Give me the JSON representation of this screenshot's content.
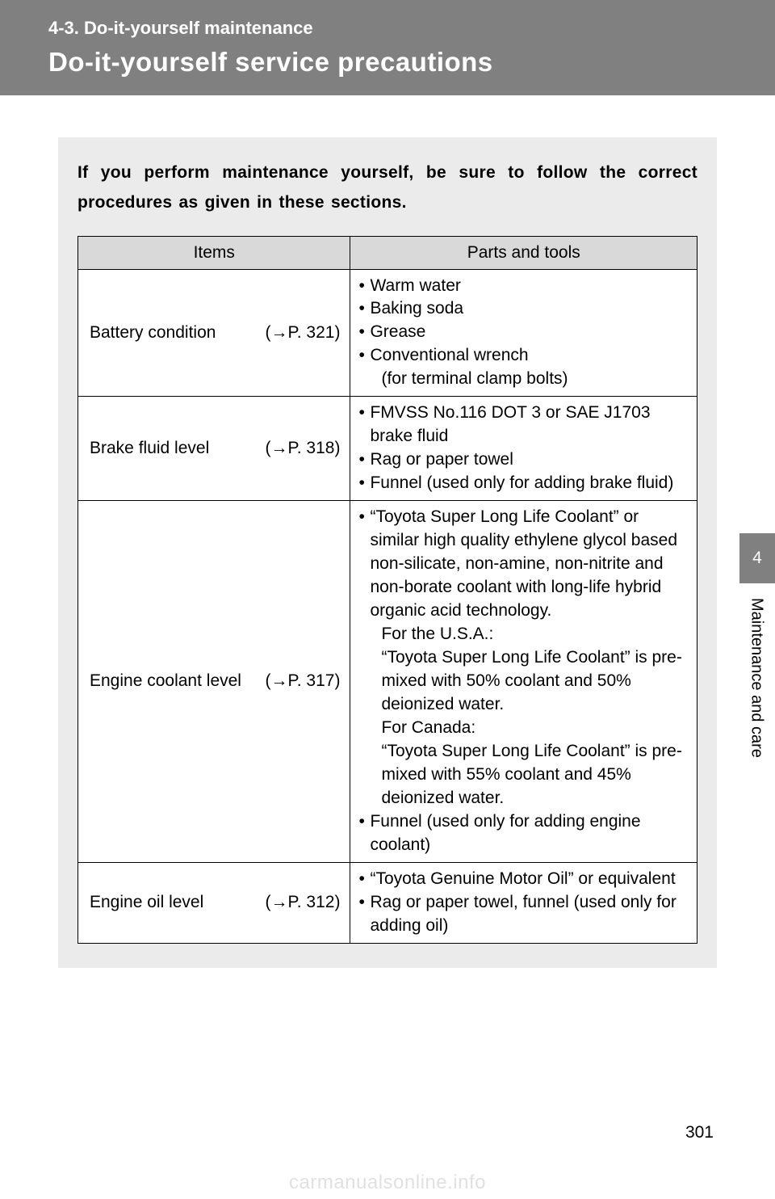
{
  "header": {
    "section_label": "4-3. Do-it-yourself maintenance",
    "title": "Do-it-yourself service precautions"
  },
  "intro": "If you perform maintenance yourself, be sure to follow the correct procedures as given in these sections.",
  "table": {
    "col_items": "Items",
    "col_tools": "Parts and tools",
    "rows": [
      {
        "item": "Battery condition",
        "ref": "(→P. 321)",
        "tools": [
          {
            "text": "Warm water"
          },
          {
            "text": "Baking soda"
          },
          {
            "text": "Grease"
          },
          {
            "text": "Conventional wrench",
            "sub": "(for terminal clamp bolts)"
          }
        ]
      },
      {
        "item": "Brake fluid level",
        "ref": "(→P. 318)",
        "tools": [
          {
            "text": "FMVSS No.116 DOT 3 or SAE J1703 brake fluid"
          },
          {
            "text": "Rag or paper towel"
          },
          {
            "text": "Funnel (used only for adding brake fluid)"
          }
        ]
      },
      {
        "item": "Engine coolant level",
        "ref": "(→P. 317)",
        "tools": [
          {
            "text": "“Toyota Super Long Life Coolant” or similar high quality ethylene glycol based non-silicate, non-amine, non-nitrite and non-borate coolant with long-life hybrid organic acid technology.",
            "sub": "For the U.S.A.:\n“Toyota Super Long Life Coolant” is pre-mixed with 50% coolant and 50% deionized water.\nFor Canada:\n“Toyota Super Long Life Coolant” is pre-mixed with 55% coolant and 45% deionized water."
          },
          {
            "text": "Funnel (used only for adding engine coolant)"
          }
        ]
      },
      {
        "item": "Engine oil level",
        "ref": "(→P. 312)",
        "tools": [
          {
            "text": "“Toyota Genuine Motor Oil” or equivalent"
          },
          {
            "text": "Rag or paper towel, funnel (used only for adding oil)"
          }
        ]
      }
    ]
  },
  "side": {
    "tab": "4",
    "label": "Maintenance and care"
  },
  "page_number": "301",
  "watermark": "carmanualsonline.info"
}
